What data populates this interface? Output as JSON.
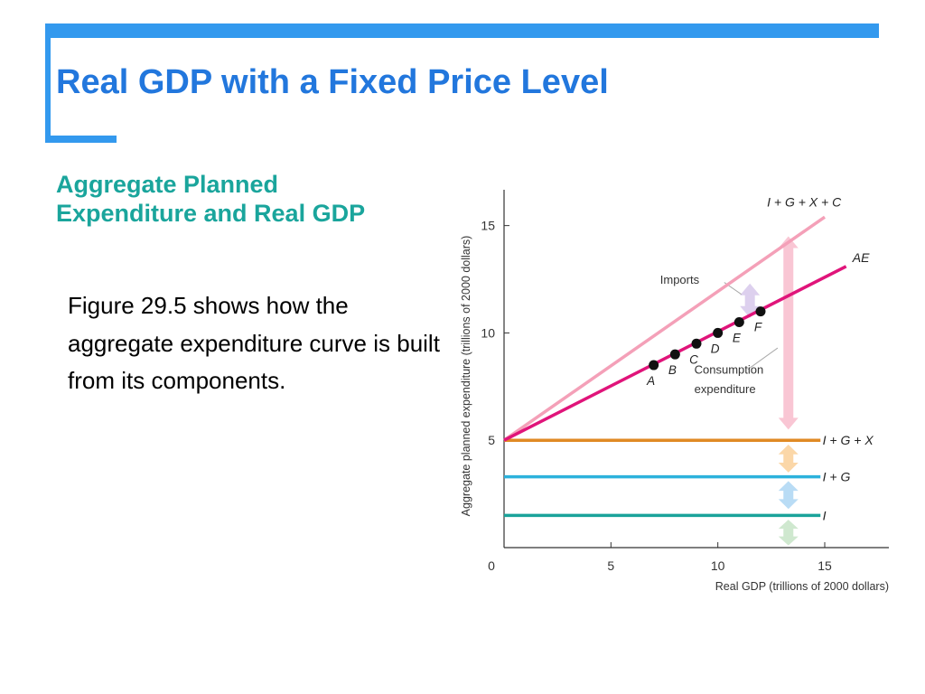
{
  "colors": {
    "accent_bar": "#3399ee",
    "title": "#2277dd",
    "subheading": "#1aa59c",
    "body_text": "#000000",
    "axis": "#333333",
    "i_line": "#1aa39a",
    "ig_line": "#2cb2dc",
    "igx_line": "#e08a24",
    "igxc_line": "#f4a0b8",
    "ae_line": "#e0147a",
    "points": "#111111",
    "arrow_consumption": "#f9c6d4",
    "arrow_imports": "#ddd0ee",
    "arrow_exports": "#fbd7a8",
    "arrow_government": "#b9dcf5",
    "arrow_investment": "#cfe8cf"
  },
  "slide": {
    "title": "Real GDP with a Fixed Price Level",
    "subheading": "Aggregate Planned Expenditure and Real GDP",
    "body": "Figure 29.5 shows how the aggregate expenditure curve is built from its components."
  },
  "chart_data": {
    "type": "line",
    "xlabel": "Real GDP (trillions of 2000 dollars)",
    "ylabel": "Aggregate planned expenditure (trillions of 2000 dollars)",
    "xlim": [
      0,
      18
    ],
    "ylim": [
      0,
      16.5
    ],
    "x_ticks": [
      0,
      5,
      10,
      15
    ],
    "y_ticks": [
      5,
      10,
      15
    ],
    "grid": false,
    "series": [
      {
        "name": "I",
        "x": [
          0,
          14.8
        ],
        "y": [
          1.5,
          1.5
        ],
        "color": "#1aa39a"
      },
      {
        "name": "I + G",
        "x": [
          0,
          14.8
        ],
        "y": [
          3.3,
          3.3
        ],
        "color": "#2cb2dc"
      },
      {
        "name": "I + G + X",
        "x": [
          0,
          14.8
        ],
        "y": [
          5,
          5
        ],
        "color": "#e08a24"
      },
      {
        "name": "I + G + X + C",
        "x": [
          0,
          15
        ],
        "y": [
          5,
          15.4
        ],
        "color": "#f4a0b8"
      },
      {
        "name": "AE",
        "x": [
          0,
          16
        ],
        "y": [
          5,
          13.1
        ],
        "color": "#e0147a"
      }
    ],
    "points": [
      {
        "label": "A",
        "x": 7,
        "y": 8.5
      },
      {
        "label": "B",
        "x": 8,
        "y": 9
      },
      {
        "label": "C",
        "x": 9,
        "y": 9.5
      },
      {
        "label": "D",
        "x": 10,
        "y": 10
      },
      {
        "label": "E",
        "x": 11,
        "y": 10.5
      },
      {
        "label": "F",
        "x": 12,
        "y": 11
      }
    ],
    "annotations": [
      {
        "text": "Imports",
        "x": 7.3,
        "y": 12.3
      },
      {
        "text": "Consumption",
        "x": 8.9,
        "y": 8.1
      },
      {
        "text": "expenditure",
        "x": 8.9,
        "y": 7.2
      }
    ],
    "arrows": [
      {
        "name": "consumption",
        "x": 13.3,
        "y_from": 5.5,
        "y_to": 14.5,
        "color": "#f9c6d4"
      },
      {
        "name": "imports",
        "x": 11.5,
        "y_from": 10.7,
        "y_to": 12.3,
        "color": "#ddd0ee"
      },
      {
        "name": "exports",
        "x": 13.3,
        "y_from": 3.5,
        "y_to": 4.8,
        "color": "#fbd7a8"
      },
      {
        "name": "government",
        "x": 13.3,
        "y_from": 1.8,
        "y_to": 3.1,
        "color": "#b9dcf5"
      },
      {
        "name": "investment",
        "x": 13.3,
        "y_from": 0.1,
        "y_to": 1.3,
        "color": "#cfe8cf"
      }
    ]
  }
}
